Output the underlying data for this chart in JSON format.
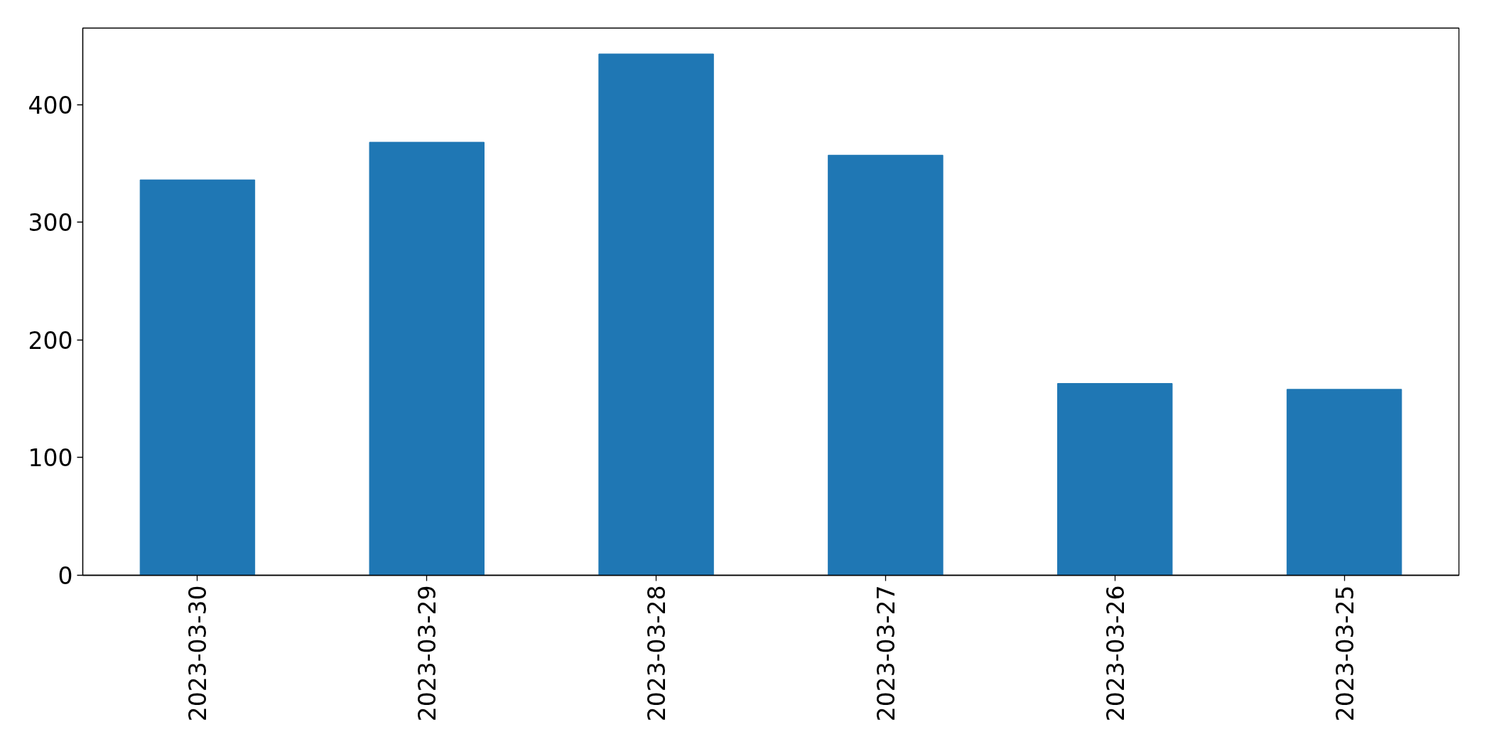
{
  "chart_data": {
    "type": "bar",
    "categories": [
      "2023-03-30",
      "2023-03-29",
      "2023-03-28",
      "2023-03-27",
      "2023-03-26",
      "2023-03-25"
    ],
    "values": [
      336,
      368,
      443,
      357,
      163,
      158
    ],
    "color": "#1f77b4",
    "ylim": [
      0,
      465
    ],
    "yticks": [
      0,
      100,
      200,
      300,
      400
    ],
    "grid": false
  }
}
